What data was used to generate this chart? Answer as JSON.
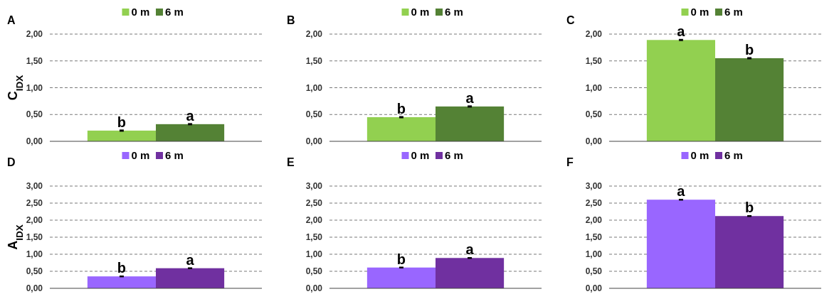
{
  "chart_data": [
    {
      "type": "bar",
      "title": "A",
      "ylabel": "C$_{IDX}$",
      "categories": [
        null
      ],
      "series": [
        {
          "name": "0 m",
          "color": "#92d050",
          "values": [
            0.2
          ],
          "errors": [
            0.01
          ]
        },
        {
          "name": "6 m",
          "color": "#548235",
          "values": [
            0.32
          ],
          "errors": [
            0.01
          ]
        }
      ],
      "ylim": [
        0,
        2
      ],
      "yticks": [
        {
          "value": 0,
          "label": "0,00"
        },
        {
          "value": 0.5,
          "label": "0,50"
        },
        {
          "value": 1,
          "label": "1,00"
        },
        {
          "value": 1.5,
          "label": "1,50"
        },
        {
          "value": 2,
          "label": "2,00"
        }
      ],
      "grid": "y",
      "legend": "top",
      "annotations": [
        {
          "text": "b",
          "y": 0.2
        },
        {
          "text": "a",
          "y": 0.32
        }
      ]
    },
    {
      "type": "bar",
      "title": "B",
      "categories": [
        null
      ],
      "series": [
        {
          "name": "0 m",
          "color": "#92d050",
          "values": [
            0.45
          ],
          "errors": [
            0.01
          ]
        },
        {
          "name": "6 m",
          "color": "#548235",
          "values": [
            0.65
          ],
          "errors": [
            0.01
          ]
        }
      ],
      "ylim": [
        0,
        2
      ],
      "yticks": [
        {
          "value": 0,
          "label": "0,00"
        },
        {
          "value": 0.5,
          "label": "0,50"
        },
        {
          "value": 1,
          "label": "1,00"
        },
        {
          "value": 1.5,
          "label": "1,50"
        },
        {
          "value": 2,
          "label": "2,00"
        }
      ],
      "grid": "y",
      "legend": "top",
      "annotations": [
        {
          "text": "b",
          "y": 0.45
        },
        {
          "text": "a",
          "y": 0.65
        }
      ]
    },
    {
      "type": "bar",
      "title": "C",
      "categories": [
        null
      ],
      "series": [
        {
          "name": "0 m",
          "color": "#92d050",
          "values": [
            1.89
          ],
          "errors": [
            0.01
          ]
        },
        {
          "name": "6 m",
          "color": "#548235",
          "values": [
            1.55
          ],
          "errors": [
            0.01
          ]
        }
      ],
      "ylim": [
        0,
        2
      ],
      "yticks": [
        {
          "value": 0,
          "label": "0,00"
        },
        {
          "value": 0.5,
          "label": "0,50"
        },
        {
          "value": 1,
          "label": "1,00"
        },
        {
          "value": 1.5,
          "label": "1,50"
        },
        {
          "value": 2,
          "label": "2,00"
        }
      ],
      "grid": "y",
      "legend": "top",
      "annotations": [
        {
          "text": "a",
          "y": 1.89
        },
        {
          "text": "b",
          "y": 1.55
        }
      ]
    },
    {
      "type": "bar",
      "title": "D",
      "ylabel": "A$_{IDX}$",
      "categories": [
        null
      ],
      "series": [
        {
          "name": "0 m",
          "color": "#9966ff",
          "values": [
            0.35
          ],
          "errors": [
            0.01
          ]
        },
        {
          "name": "6 m",
          "color": "#7030a0",
          "values": [
            0.59
          ],
          "errors": [
            0.01
          ]
        }
      ],
      "ylim": [
        0,
        3
      ],
      "yticks": [
        {
          "value": 0,
          "label": "0,00"
        },
        {
          "value": 0.5,
          "label": "0,50"
        },
        {
          "value": 1,
          "label": "1,00"
        },
        {
          "value": 1.5,
          "label": "1,50"
        },
        {
          "value": 2,
          "label": "2,00"
        },
        {
          "value": 2.5,
          "label": "2,50"
        },
        {
          "value": 3,
          "label": "3,00"
        }
      ],
      "grid": "y",
      "legend": "top",
      "annotations": [
        {
          "text": "b",
          "y": 0.35
        },
        {
          "text": "a",
          "y": 0.59
        }
      ]
    },
    {
      "type": "bar",
      "title": "E",
      "categories": [
        null
      ],
      "series": [
        {
          "name": "0 m",
          "color": "#9966ff",
          "values": [
            0.61
          ],
          "errors": [
            0.01
          ]
        },
        {
          "name": "6 m",
          "color": "#7030a0",
          "values": [
            0.89
          ],
          "errors": [
            0.01
          ]
        }
      ],
      "ylim": [
        0,
        3
      ],
      "yticks": [
        {
          "value": 0,
          "label": "0,00"
        },
        {
          "value": 0.5,
          "label": "0,50"
        },
        {
          "value": 1,
          "label": "1,00"
        },
        {
          "value": 1.5,
          "label": "1,50"
        },
        {
          "value": 2,
          "label": "2,00"
        },
        {
          "value": 2.5,
          "label": "2,50"
        },
        {
          "value": 3,
          "label": "3,00"
        }
      ],
      "grid": "y",
      "legend": "top",
      "annotations": [
        {
          "text": "b",
          "y": 0.61
        },
        {
          "text": "a",
          "y": 0.89
        }
      ]
    },
    {
      "type": "bar",
      "title": "F",
      "categories": [
        null
      ],
      "series": [
        {
          "name": "0 m",
          "color": "#9966ff",
          "values": [
            2.6
          ],
          "errors": [
            0.01
          ]
        },
        {
          "name": "6 m",
          "color": "#7030a0",
          "values": [
            2.12
          ],
          "errors": [
            0.01
          ]
        }
      ],
      "ylim": [
        0,
        3
      ],
      "yticks": [
        {
          "value": 0,
          "label": "0,00"
        },
        {
          "value": 0.5,
          "label": "0,50"
        },
        {
          "value": 1,
          "label": "1,00"
        },
        {
          "value": 1.5,
          "label": "1,50"
        },
        {
          "value": 2,
          "label": "2,00"
        },
        {
          "value": 2.5,
          "label": "2,50"
        },
        {
          "value": 3,
          "label": "3,00"
        }
      ],
      "grid": "y",
      "legend": "top",
      "annotations": [
        {
          "text": "a",
          "y": 2.6
        },
        {
          "text": "b",
          "y": 2.12
        }
      ]
    }
  ]
}
